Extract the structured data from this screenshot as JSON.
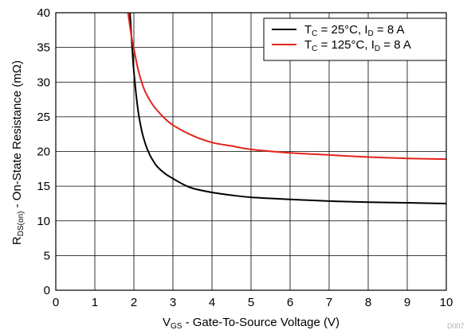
{
  "chart_data": {
    "type": "line",
    "title": "",
    "xlabel": {
      "main": "V",
      "sub": "GS",
      "rest": " - Gate-To-Source Voltage (V)"
    },
    "ylabel": {
      "main": "R",
      "sub": "DS(on)",
      "rest": " - On-State Resistance (mΩ)"
    },
    "xlim": [
      0,
      10
    ],
    "ylim": [
      0,
      40
    ],
    "xticks": [
      "0",
      "1",
      "2",
      "3",
      "4",
      "5",
      "6",
      "7",
      "8",
      "9",
      "10"
    ],
    "yticks": [
      "0",
      "5",
      "10",
      "15",
      "20",
      "25",
      "30",
      "35",
      "40"
    ],
    "grid": true,
    "legend_position": "top-right",
    "figure_code": "D007",
    "series": [
      {
        "name": "TC = 25°C, ID = 8 A",
        "label": {
          "t": "T",
          "tsub": "C",
          "mid": " = 25°C, I",
          "isub": "D",
          "end": " = 8 A"
        },
        "color": "#000000",
        "x": [
          1.9,
          1.95,
          2.0,
          2.1,
          2.2,
          2.3,
          2.4,
          2.5,
          2.6,
          2.8,
          3.0,
          3.25,
          3.5,
          4.0,
          4.5,
          5.0,
          6.0,
          7.0,
          8.0,
          9.0,
          10.0
        ],
        "y": [
          40,
          35.5,
          31.5,
          26.2,
          23.0,
          21.0,
          19.6,
          18.6,
          17.8,
          16.8,
          16.1,
          15.3,
          14.7,
          14.1,
          13.7,
          13.4,
          13.1,
          12.85,
          12.7,
          12.6,
          12.5
        ]
      },
      {
        "name": "TC = 125°C, ID = 8 A",
        "label": {
          "t": "T",
          "tsub": "C",
          "mid": " = 125°C, I",
          "isub": "D",
          "end": " = 8 A"
        },
        "color": "#e2231a",
        "x": [
          1.85,
          1.9,
          1.95,
          2.0,
          2.1,
          2.2,
          2.3,
          2.5,
          2.75,
          3.0,
          3.5,
          4.0,
          4.5,
          5.0,
          6.0,
          7.0,
          8.0,
          9.0,
          10.0
        ],
        "y": [
          40,
          38.0,
          36.2,
          34.8,
          32.0,
          30.0,
          28.5,
          26.6,
          25.0,
          23.8,
          22.3,
          21.3,
          20.8,
          20.3,
          19.8,
          19.5,
          19.2,
          19.0,
          18.9
        ]
      }
    ]
  }
}
